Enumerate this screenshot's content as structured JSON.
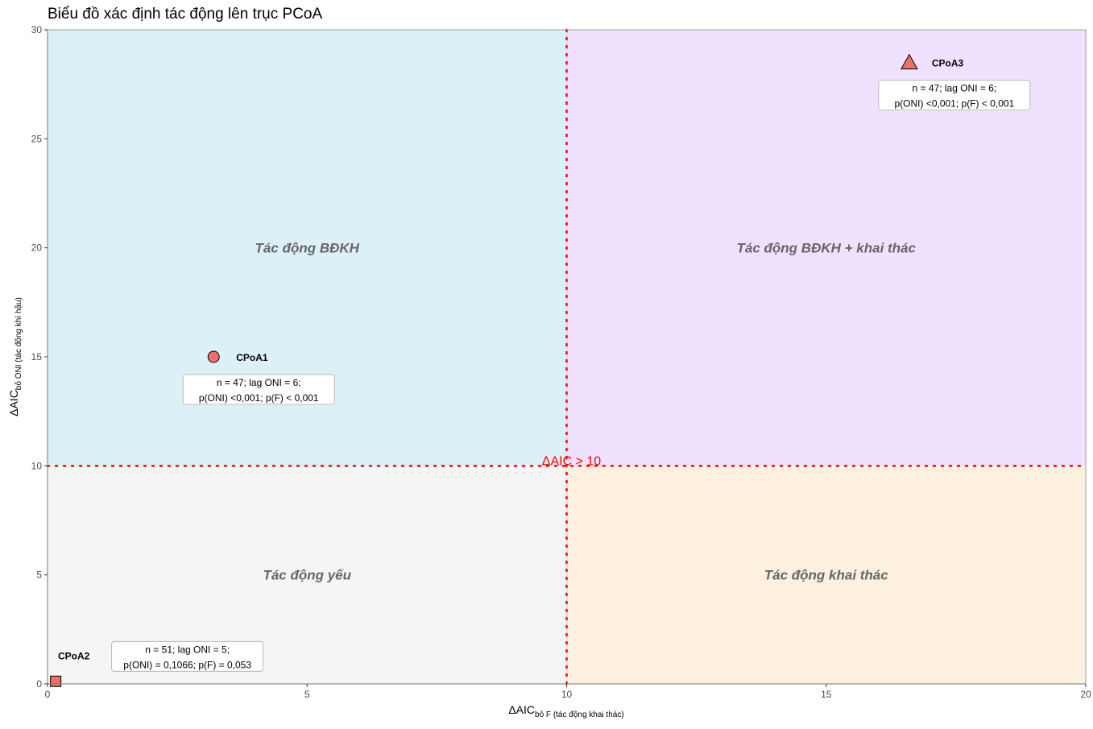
{
  "chart_data": {
    "type": "scatter",
    "title": "Biểu đồ xác định tác động lên trục PCoA",
    "xlabel": {
      "main": "ΔAIC",
      "sub": "bỏ F (tác động khai thác)"
    },
    "ylabel": {
      "main": "ΔAIC",
      "sub": "bỏ ONI (tác động khí hậu)"
    },
    "xlim": [
      0,
      20
    ],
    "ylim": [
      0,
      30
    ],
    "xticks": [
      0,
      5,
      10,
      15,
      20
    ],
    "yticks": [
      0,
      5,
      10,
      15,
      20,
      25,
      30
    ],
    "grid": false,
    "threshold": {
      "x": 10,
      "y": 10,
      "label": "ΔAIC > 10",
      "color": "#ff0000"
    },
    "quadrants": [
      {
        "label": "Tác động BĐKH",
        "x": [
          0,
          10
        ],
        "y": [
          10,
          30
        ],
        "color": "#dcf0f8"
      },
      {
        "label": "Tác động BĐKH + khai thác",
        "x": [
          10,
          20
        ],
        "y": [
          10,
          30
        ],
        "color": "#f0e2ff"
      },
      {
        "label": "Tác động yếu",
        "x": [
          0,
          10
        ],
        "y": [
          0,
          10
        ],
        "color": "#f5f5f5"
      },
      {
        "label": "Tác động khai thác",
        "x": [
          10,
          20
        ],
        "y": [
          0,
          10
        ],
        "color": "#fdf0df"
      }
    ],
    "points": [
      {
        "name": "CPoA1",
        "x": 3.2,
        "y": 15.0,
        "shape": "circle",
        "color": "#f07068",
        "annotation": [
          "n = 47; lag ONI = 6;",
          "p(ONI) <0,001; p(F) < 0,001"
        ]
      },
      {
        "name": "CPoA2",
        "x": 0.15,
        "y": 0.1,
        "shape": "square",
        "color": "#f07068",
        "annotation": [
          "n = 51; lag ONI = 5;",
          "p(ONI) = 0,1066; p(F) = 0,053"
        ]
      },
      {
        "name": "CPoA3",
        "x": 16.6,
        "y": 28.5,
        "shape": "triangle",
        "color": "#f07068",
        "annotation": [
          "n = 47; lag ONI = 6;",
          "p(ONI) <0,001; p(F) < 0,001"
        ]
      }
    ]
  }
}
